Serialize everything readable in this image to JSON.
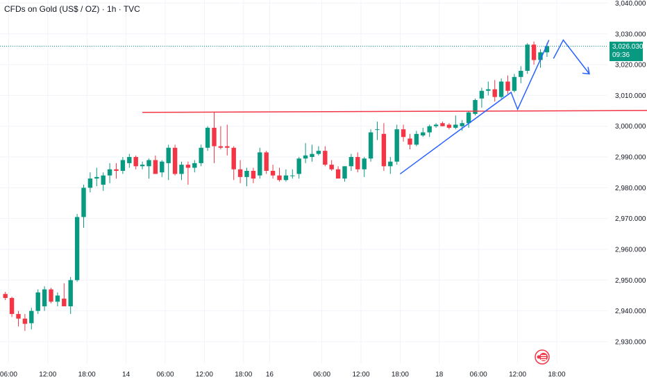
{
  "title": "CFDs on Gold (US$ / OZ) · 1h · TVC",
  "last_price": {
    "value": "3,026.030",
    "countdown": "09:36"
  },
  "colors": {
    "up": "#089981",
    "down": "#f23645",
    "resistance": "#f23645",
    "pattern": "#2962ff",
    "lastline": "#089981"
  },
  "chart_data": {
    "type": "candlestick",
    "ylim": [
      2923,
      3041
    ],
    "y_ticks": [
      "2,930.000",
      "2,940.000",
      "2,950.000",
      "2,960.000",
      "2,970.000",
      "2,980.000",
      "2,990.000",
      "3,000.000",
      "3,010.000",
      "3,020.000",
      "3,030.000",
      "3,040.000"
    ],
    "y_tick_values": [
      2930,
      2940,
      2950,
      2960,
      2970,
      2980,
      2990,
      3000,
      3010,
      3020,
      3030,
      3040
    ],
    "x_ticks": [
      {
        "label": "06:00",
        "bar": 1
      },
      {
        "label": "12:00",
        "bar": 7
      },
      {
        "label": "18:00",
        "bar": 13
      },
      {
        "label": "14",
        "bar": 19
      },
      {
        "label": "06:00",
        "bar": 25
      },
      {
        "label": "12:00",
        "bar": 31
      },
      {
        "label": "18:00",
        "bar": 37
      },
      {
        "label": "16",
        "bar": 41
      },
      {
        "label": "06:00",
        "bar": 49
      },
      {
        "label": "12:00",
        "bar": 55
      },
      {
        "label": "18:00",
        "bar": 61
      },
      {
        "label": "18",
        "bar": 67
      },
      {
        "label": "06:00",
        "bar": 73
      },
      {
        "label": "12:00",
        "bar": 79
      },
      {
        "label": "18:00",
        "bar": 85
      }
    ],
    "candles": [
      [
        2945.5,
        2946.2,
        2943.5,
        2944.2
      ],
      [
        2944.2,
        2944.6,
        2938.0,
        2939.0
      ],
      [
        2939.0,
        2940.0,
        2935.0,
        2937.5
      ],
      [
        2937.5,
        2939.0,
        2933.5,
        2935.8
      ],
      [
        2936.0,
        2941.0,
        2934.0,
        2940.0
      ],
      [
        2940.0,
        2947.0,
        2939.0,
        2946.0
      ],
      [
        2941.5,
        2948.0,
        2940.0,
        2947.0
      ],
      [
        2947.0,
        2947.5,
        2942.5,
        2943.0
      ],
      [
        2943.0,
        2946.0,
        2941.5,
        2945.0
      ],
      [
        2944.0,
        2949.0,
        2941.5,
        2941.5
      ],
      [
        2941.5,
        2951.0,
        2939.0,
        2950.0
      ],
      [
        2950.0,
        2971.5,
        2949.5,
        2970.5
      ],
      [
        2970.5,
        2981.0,
        2967.0,
        2980.0
      ],
      [
        2980.0,
        2985.0,
        2978.5,
        2983.0
      ],
      [
        2983.0,
        2986.5,
        2980.5,
        2983.5
      ],
      [
        2981.0,
        2985.0,
        2979.0,
        2984.0
      ],
      [
        2984.0,
        2988.0,
        2981.5,
        2986.0
      ],
      [
        2986.0,
        2988.0,
        2983.0,
        2985.5
      ],
      [
        2985.5,
        2990.0,
        2984.5,
        2989.0
      ],
      [
        2988.0,
        2991.0,
        2986.5,
        2990.0
      ],
      [
        2990.0,
        2990.5,
        2986.0,
        2987.0
      ],
      [
        2987.0,
        2988.5,
        2986.0,
        2987.5
      ],
      [
        2987.0,
        2989.5,
        2983.0,
        2989.0
      ],
      [
        2989.0,
        2990.5,
        2985.0,
        2984.5
      ],
      [
        2985.0,
        2989.0,
        2983.5,
        2988.5
      ],
      [
        2988.0,
        2994.0,
        2982.5,
        2993.0
      ],
      [
        2993.0,
        2994.0,
        2984.0,
        2984.5
      ],
      [
        2984.5,
        2988.5,
        2982.5,
        2987.5
      ],
      [
        2987.5,
        2988.5,
        2981.0,
        2986.5
      ],
      [
        2986.5,
        2989.0,
        2985.0,
        2988.0
      ],
      [
        2988.0,
        2994.0,
        2987.0,
        2993.0
      ],
      [
        2993.0,
        3000.0,
        2992.0,
        2999.5
      ],
      [
        2999.5,
        3004.5,
        2988.0,
        2993.5
      ],
      [
        2993.5,
        3000.0,
        2992.5,
        2993.0
      ],
      [
        2993.5,
        3000.5,
        2990.5,
        2993.0
      ],
      [
        2993.0,
        2993.5,
        2982.5,
        2986.0
      ],
      [
        2986.0,
        2989.0,
        2981.5,
        2983.5
      ],
      [
        2983.5,
        2986.5,
        2980.5,
        2985.5
      ],
      [
        2985.5,
        2986.5,
        2981.5,
        2983.0
      ],
      [
        2984.0,
        2993.0,
        2983.0,
        2991.5
      ],
      [
        2991.5,
        2992.0,
        2984.5,
        2985.5
      ],
      [
        2985.5,
        2987.5,
        2983.0,
        2984.0
      ],
      [
        2984.0,
        2986.5,
        2982.0,
        2982.5
      ],
      [
        2982.5,
        2986.0,
        2982.0,
        2984.0
      ],
      [
        2984.0,
        2986.0,
        2983.0,
        2984.0
      ],
      [
        2984.5,
        2990.0,
        2983.0,
        2989.5
      ],
      [
        2989.5,
        2994.5,
        2988.0,
        2990.5
      ],
      [
        2990.0,
        2994.0,
        2988.5,
        2991.0
      ],
      [
        2991.0,
        2993.5,
        2990.5,
        2992.0
      ],
      [
        2992.0,
        2993.5,
        2987.0,
        2987.5
      ],
      [
        2987.5,
        2989.0,
        2985.5,
        2986.0
      ],
      [
        2986.0,
        2987.0,
        2983.5,
        2983.0
      ],
      [
        2983.0,
        2987.0,
        2982.0,
        2987.0
      ],
      [
        2987.0,
        2991.0,
        2985.5,
        2990.0
      ],
      [
        2990.0,
        2991.5,
        2985.0,
        2986.0
      ],
      [
        2986.0,
        2990.0,
        2983.5,
        2989.5
      ],
      [
        2989.5,
        2999.0,
        2988.5,
        2998.0
      ],
      [
        2999.0,
        3001.5,
        2995.5,
        2999.0
      ],
      [
        2997.5,
        3001.0,
        2985.5,
        2987.0
      ],
      [
        2987.0,
        2990.0,
        2984.5,
        2988.5
      ],
      [
        2988.5,
        3000.5,
        2987.5,
        2999.0
      ],
      [
        2999.0,
        3000.5,
        2995.0,
        2996.5
      ],
      [
        2996.0,
        2997.5,
        2992.5,
        2994.0
      ],
      [
        2994.0,
        2998.5,
        2993.5,
        2997.5
      ],
      [
        2997.0,
        2999.5,
        2996.5,
        2998.0
      ],
      [
        2998.0,
        3000.5,
        2996.5,
        3000.0
      ],
      [
        3000.0,
        3001.0,
        2999.5,
        3000.5
      ],
      [
        3001.0,
        3001.5,
        3000.0,
        3000.0
      ],
      [
        3000.5,
        3001.0,
        2999.0,
        2999.5
      ],
      [
        2999.5,
        3003.5,
        2999.0,
        3000.5
      ],
      [
        3000.0,
        3002.0,
        2998.5,
        3001.0
      ],
      [
        3001.0,
        3005.0,
        2999.5,
        3004.5
      ],
      [
        3004.0,
        3009.0,
        3003.5,
        3008.5
      ],
      [
        3009.0,
        3012.5,
        3006.0,
        3011.5
      ],
      [
        3011.5,
        3014.5,
        3010.0,
        3012.0
      ],
      [
        3012.0,
        3015.0,
        3008.0,
        3009.5
      ],
      [
        3009.5,
        3015.5,
        3009.0,
        3014.5
      ],
      [
        3014.5,
        3016.5,
        3010.5,
        3011.5
      ],
      [
        3011.5,
        3017.0,
        3011.0,
        3016.0
      ],
      [
        3016.0,
        3019.5,
        3014.0,
        3018.0
      ],
      [
        3018.0,
        3027.0,
        3017.0,
        3026.5
      ],
      [
        3026.5,
        3027.5,
        3020.0,
        3021.5
      ],
      [
        3021.5,
        3025.0,
        3019.0,
        3024.0
      ],
      [
        3024.0,
        3027.0,
        3022.5,
        3026.0
      ]
    ],
    "resistance": [
      [
        21.5,
        3004.5
      ],
      [
        111,
        3005.2
      ]
    ],
    "pattern_lines": [
      [
        [
          61,
          2984.5
        ],
        [
          69,
          2997.0
        ],
        [
          78,
          3011.0
        ],
        [
          79,
          3005.5
        ],
        [
          83,
          3024.0
        ],
        [
          83.8,
          3028.0
        ]
      ],
      [
        [
          84.5,
          3022.0
        ],
        [
          86,
          3028.0
        ],
        [
          90,
          3017.0
        ]
      ]
    ],
    "arrow_head": [
      90,
      3017.0
    ]
  }
}
